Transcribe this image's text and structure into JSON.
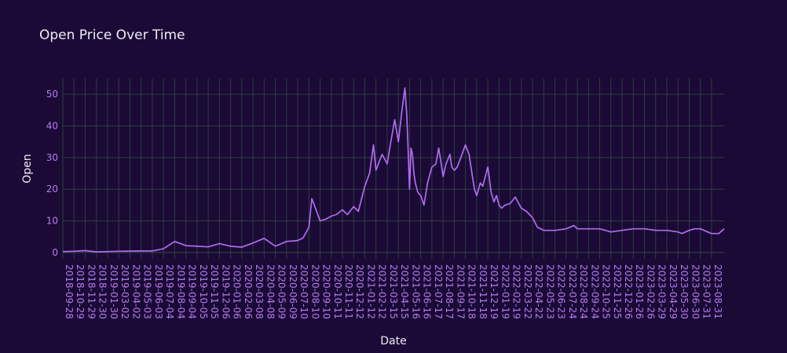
{
  "chart_data": {
    "type": "line",
    "title": "Open Price Over Time",
    "xlabel": "Date",
    "ylabel": "Open",
    "x_range": [
      "2018-09-28",
      "2023-10-05"
    ],
    "ylim": [
      -2,
      55
    ],
    "y_ticks": [
      0,
      10,
      20,
      30,
      40,
      50
    ],
    "x_tick_labels": [
      "2018-09-28",
      "2018-10-29",
      "2018-11-29",
      "2018-12-30",
      "2019-01-30",
      "2019-03-02",
      "2019-04-02",
      "2019-05-03",
      "2019-06-03",
      "2019-07-04",
      "2019-08-04",
      "2019-09-04",
      "2019-10-05",
      "2019-11-05",
      "2019-12-06",
      "2020-01-06",
      "2020-02-06",
      "2020-03-08",
      "2020-04-08",
      "2020-05-09",
      "2020-06-09",
      "2020-07-10",
      "2020-08-10",
      "2020-09-10",
      "2020-10-11",
      "2020-11-11",
      "2020-12-12",
      "2021-01-12",
      "2021-02-12",
      "2021-03-15",
      "2021-04-15",
      "2021-05-16",
      "2021-06-16",
      "2021-07-17",
      "2021-08-17",
      "2021-09-17",
      "2021-10-18",
      "2021-11-18",
      "2021-12-19",
      "2022-01-19",
      "2022-02-19",
      "2022-03-22",
      "2022-04-22",
      "2022-05-23",
      "2022-06-23",
      "2022-07-24",
      "2022-08-24",
      "2022-09-24",
      "2022-10-25",
      "2022-11-25",
      "2022-12-26",
      "2023-01-26",
      "2023-02-26",
      "2023-03-29",
      "2023-04-29",
      "2023-05-30",
      "2023-06-30",
      "2023-07-31",
      "2023-08-31"
    ],
    "grid": true,
    "colors": {
      "background": "#1a0a35",
      "line": "#b06cf0",
      "grid": "#2e3f3f",
      "tick_text": "#b77cf0",
      "title_text": "#f2ecf8"
    },
    "series": [
      {
        "x": [
          "2018-09-28",
          "2018-10-29",
          "2018-11-29",
          "2018-12-30",
          "2019-01-30",
          "2019-03-02",
          "2019-04-02",
          "2019-05-03",
          "2019-06-03",
          "2019-07-04",
          "2019-08-04",
          "2019-09-04",
          "2019-10-05",
          "2019-11-05",
          "2019-12-06",
          "2020-01-06",
          "2020-02-06",
          "2020-03-08",
          "2020-04-08",
          "2020-05-09",
          "2020-06-09",
          "2020-07-10",
          "2020-07-25",
          "2020-08-10",
          "2020-08-18",
          "2020-08-25",
          "2020-09-10",
          "2020-09-25",
          "2020-10-11",
          "2020-10-25",
          "2020-11-11",
          "2020-11-25",
          "2020-12-12",
          "2020-12-25",
          "2021-01-12",
          "2021-01-25",
          "2021-02-05",
          "2021-02-12",
          "2021-02-22",
          "2021-03-01",
          "2021-03-15",
          "2021-03-25",
          "2021-04-05",
          "2021-04-15",
          "2021-04-25",
          "2021-05-03",
          "2021-05-08",
          "2021-05-11",
          "2021-05-16",
          "2021-05-20",
          "2021-05-24",
          "2021-05-28",
          "2021-06-01",
          "2021-06-08",
          "2021-06-16",
          "2021-06-25",
          "2021-07-05",
          "2021-07-17",
          "2021-07-28",
          "2021-08-05",
          "2021-08-17",
          "2021-08-25",
          "2021-09-05",
          "2021-09-10",
          "2021-09-17",
          "2021-09-25",
          "2021-10-05",
          "2021-10-18",
          "2021-10-28",
          "2021-11-05",
          "2021-11-12",
          "2021-11-18",
          "2021-11-28",
          "2021-12-05",
          "2021-12-19",
          "2021-12-28",
          "2022-01-05",
          "2022-01-12",
          "2022-01-19",
          "2022-01-26",
          "2022-02-05",
          "2022-02-19",
          "2022-03-05",
          "2022-03-22",
          "2022-04-05",
          "2022-04-22",
          "2022-05-05",
          "2022-05-15",
          "2022-05-23",
          "2022-06-23",
          "2022-07-24",
          "2022-08-15",
          "2022-08-24",
          "2022-09-24",
          "2022-10-25",
          "2022-11-25",
          "2022-12-26",
          "2023-01-26",
          "2023-02-26",
          "2023-03-29",
          "2023-04-29",
          "2023-05-30",
          "2023-06-10",
          "2023-06-30",
          "2023-07-15",
          "2023-07-31",
          "2023-08-31",
          "2023-09-20",
          "2023-10-05"
        ],
        "values": [
          0.3,
          0.4,
          0.6,
          0.2,
          0.3,
          0.4,
          0.45,
          0.5,
          0.5,
          1.2,
          3.5,
          2.2,
          2.0,
          1.8,
          2.8,
          2.0,
          1.7,
          3.0,
          4.5,
          2.0,
          3.5,
          3.8,
          4.6,
          8.0,
          17.0,
          15.0,
          10.0,
          10.5,
          11.5,
          12.0,
          13.5,
          12.0,
          14.5,
          13.0,
          21.0,
          25.0,
          34.0,
          26.0,
          29.0,
          31.0,
          28.0,
          35.0,
          42.0,
          35.0,
          45.0,
          52.0,
          44.0,
          36.0,
          20.0,
          33.0,
          31.0,
          25.0,
          22.0,
          19.0,
          18.0,
          15.0,
          22.0,
          27.0,
          28.0,
          33.0,
          24.0,
          28.0,
          31.0,
          27.0,
          26.0,
          27.0,
          30.0,
          34.0,
          31.0,
          25.0,
          20.0,
          18.0,
          22.0,
          21.0,
          27.0,
          19.0,
          16.0,
          18.0,
          15.0,
          14.0,
          15.0,
          15.5,
          17.5,
          14.0,
          13.0,
          11.0,
          8.0,
          7.5,
          7.0,
          7.0,
          7.5,
          8.5,
          7.5,
          7.5,
          7.5,
          6.5,
          7.0,
          7.5,
          7.5,
          7.0,
          7.0,
          6.5,
          6.0,
          7.0,
          7.5,
          7.5,
          6.0,
          6.0,
          7.5
        ]
      }
    ]
  }
}
